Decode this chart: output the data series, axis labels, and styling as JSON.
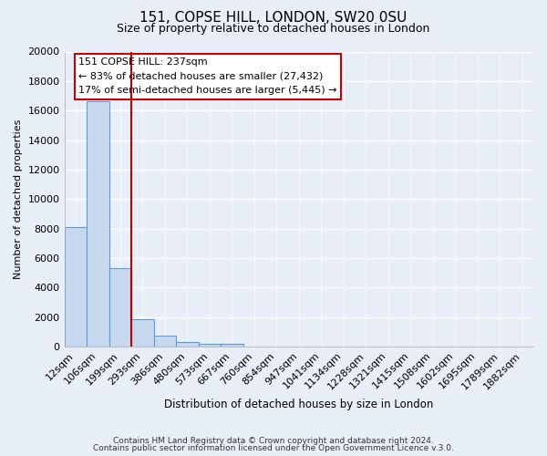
{
  "title": "151, COPSE HILL, LONDON, SW20 0SU",
  "subtitle": "Size of property relative to detached houses in London",
  "xlabel": "Distribution of detached houses by size in London",
  "ylabel": "Number of detached properties",
  "footer_lines": [
    "Contains HM Land Registry data © Crown copyright and database right 2024.",
    "Contains public sector information licensed under the Open Government Licence v.3.0."
  ],
  "bar_labels": [
    "12sqm",
    "106sqm",
    "199sqm",
    "293sqm",
    "386sqm",
    "480sqm",
    "573sqm",
    "667sqm",
    "760sqm",
    "854sqm",
    "947sqm",
    "1041sqm",
    "1134sqm",
    "1228sqm",
    "1321sqm",
    "1415sqm",
    "1508sqm",
    "1602sqm",
    "1695sqm",
    "1789sqm",
    "1882sqm"
  ],
  "bar_values": [
    8100,
    16600,
    5300,
    1850,
    750,
    320,
    190,
    150,
    0,
    0,
    0,
    0,
    0,
    0,
    0,
    0,
    0,
    0,
    0,
    0,
    0
  ],
  "bar_color": "#c8d9ef",
  "bar_edge_color": "#5b9bd5",
  "background_color": "#e8eef8",
  "grid_color": "#ffffff",
  "annotation_box_text": "151 COPSE HILL: 237sqm\n← 83% of detached houses are smaller (27,432)\n17% of semi-detached houses are larger (5,445) →",
  "annotation_box_edge_color": "#cc0000",
  "red_line_x": 2.5,
  "ylim": [
    0,
    20000
  ],
  "yticks": [
    0,
    2000,
    4000,
    6000,
    8000,
    10000,
    12000,
    14000,
    16000,
    18000,
    20000
  ]
}
